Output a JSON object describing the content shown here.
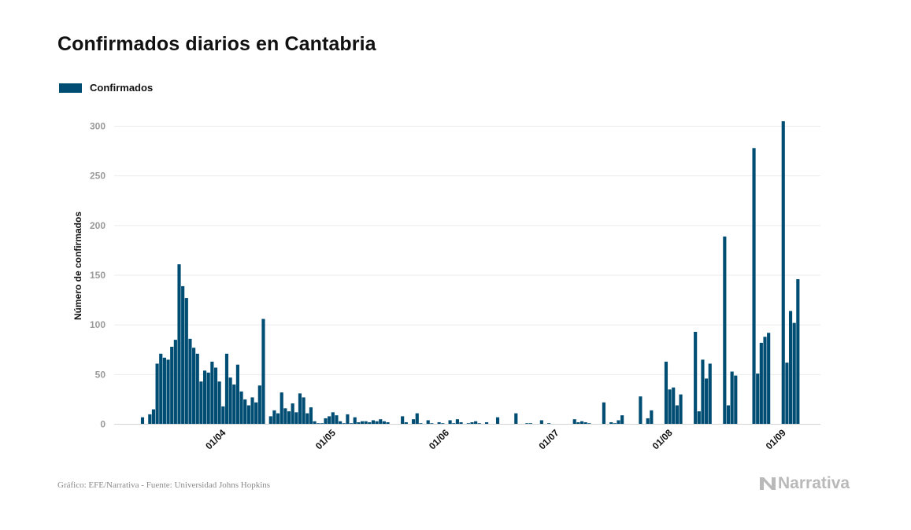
{
  "header": {
    "title": "Confirmados diarios en Cantabria"
  },
  "legend": {
    "label": "Confirmados",
    "color": "#004d74"
  },
  "footer": {
    "source": "Gráfico: EFE/Narrativa - Fuente: Universidad Johns Hopkins",
    "brand": "Narrativa",
    "brand_icon": "narrativa-logo-icon"
  },
  "chart_data": {
    "type": "bar",
    "title": "Confirmados diarios en Cantabria",
    "ylabel": "Número de confirmados",
    "xlabel": "",
    "ylim": [
      0,
      300
    ],
    "yticks": [
      0,
      50,
      100,
      150,
      200,
      250,
      300
    ],
    "grid": true,
    "legend_position": "top-left",
    "x_start": "2020-03-10",
    "x_end": "2020-09-13",
    "xtick_labels": [
      {
        "label": "01/04",
        "date": "2020-04-01"
      },
      {
        "label": "01/05",
        "date": "2020-05-01"
      },
      {
        "label": "01/06",
        "date": "2020-06-01"
      },
      {
        "label": "01/07",
        "date": "2020-07-01"
      },
      {
        "label": "01/08",
        "date": "2020-08-01"
      },
      {
        "label": "01/09",
        "date": "2020-09-01"
      }
    ],
    "series": [
      {
        "name": "Confirmados",
        "color": "#004d74",
        "start_date": "2020-03-10",
        "values": [
          7,
          0,
          10,
          15,
          61,
          71,
          67,
          65,
          78,
          85,
          161,
          139,
          127,
          86,
          77,
          71,
          43,
          54,
          52,
          63,
          57,
          43,
          18,
          71,
          47,
          40,
          60,
          33,
          25,
          19,
          27,
          22,
          39,
          106,
          0,
          8,
          14,
          11,
          32,
          16,
          13,
          21,
          12,
          31,
          27,
          11,
          17,
          3,
          1,
          1,
          6,
          8,
          12,
          9,
          3,
          1,
          10,
          1,
          7,
          2,
          3,
          3,
          2,
          4,
          3,
          5,
          3,
          2,
          0,
          0,
          0,
          8,
          2,
          0,
          5,
          11,
          1,
          0,
          4,
          1,
          0,
          2,
          1,
          0,
          4,
          1,
          5,
          2,
          0,
          1,
          2,
          3,
          1,
          0,
          2,
          0,
          0,
          7,
          0,
          0,
          0,
          0,
          11,
          0,
          0,
          1,
          1,
          0,
          0,
          4,
          0,
          1,
          0,
          0,
          0,
          0,
          0,
          0,
          5,
          2,
          3,
          2,
          1,
          0,
          0,
          0,
          22,
          0,
          2,
          1,
          4,
          9,
          0,
          0,
          0,
          0,
          28,
          0,
          6,
          14,
          0,
          0,
          0,
          63,
          35,
          37,
          19,
          30,
          0,
          0,
          0,
          93,
          13,
          65,
          46,
          61,
          0,
          0,
          0,
          189,
          19,
          53,
          49,
          0,
          0,
          0,
          0,
          278,
          51,
          82,
          88,
          92,
          0,
          0,
          0,
          305,
          62,
          114,
          102,
          146,
          0
        ]
      }
    ]
  }
}
